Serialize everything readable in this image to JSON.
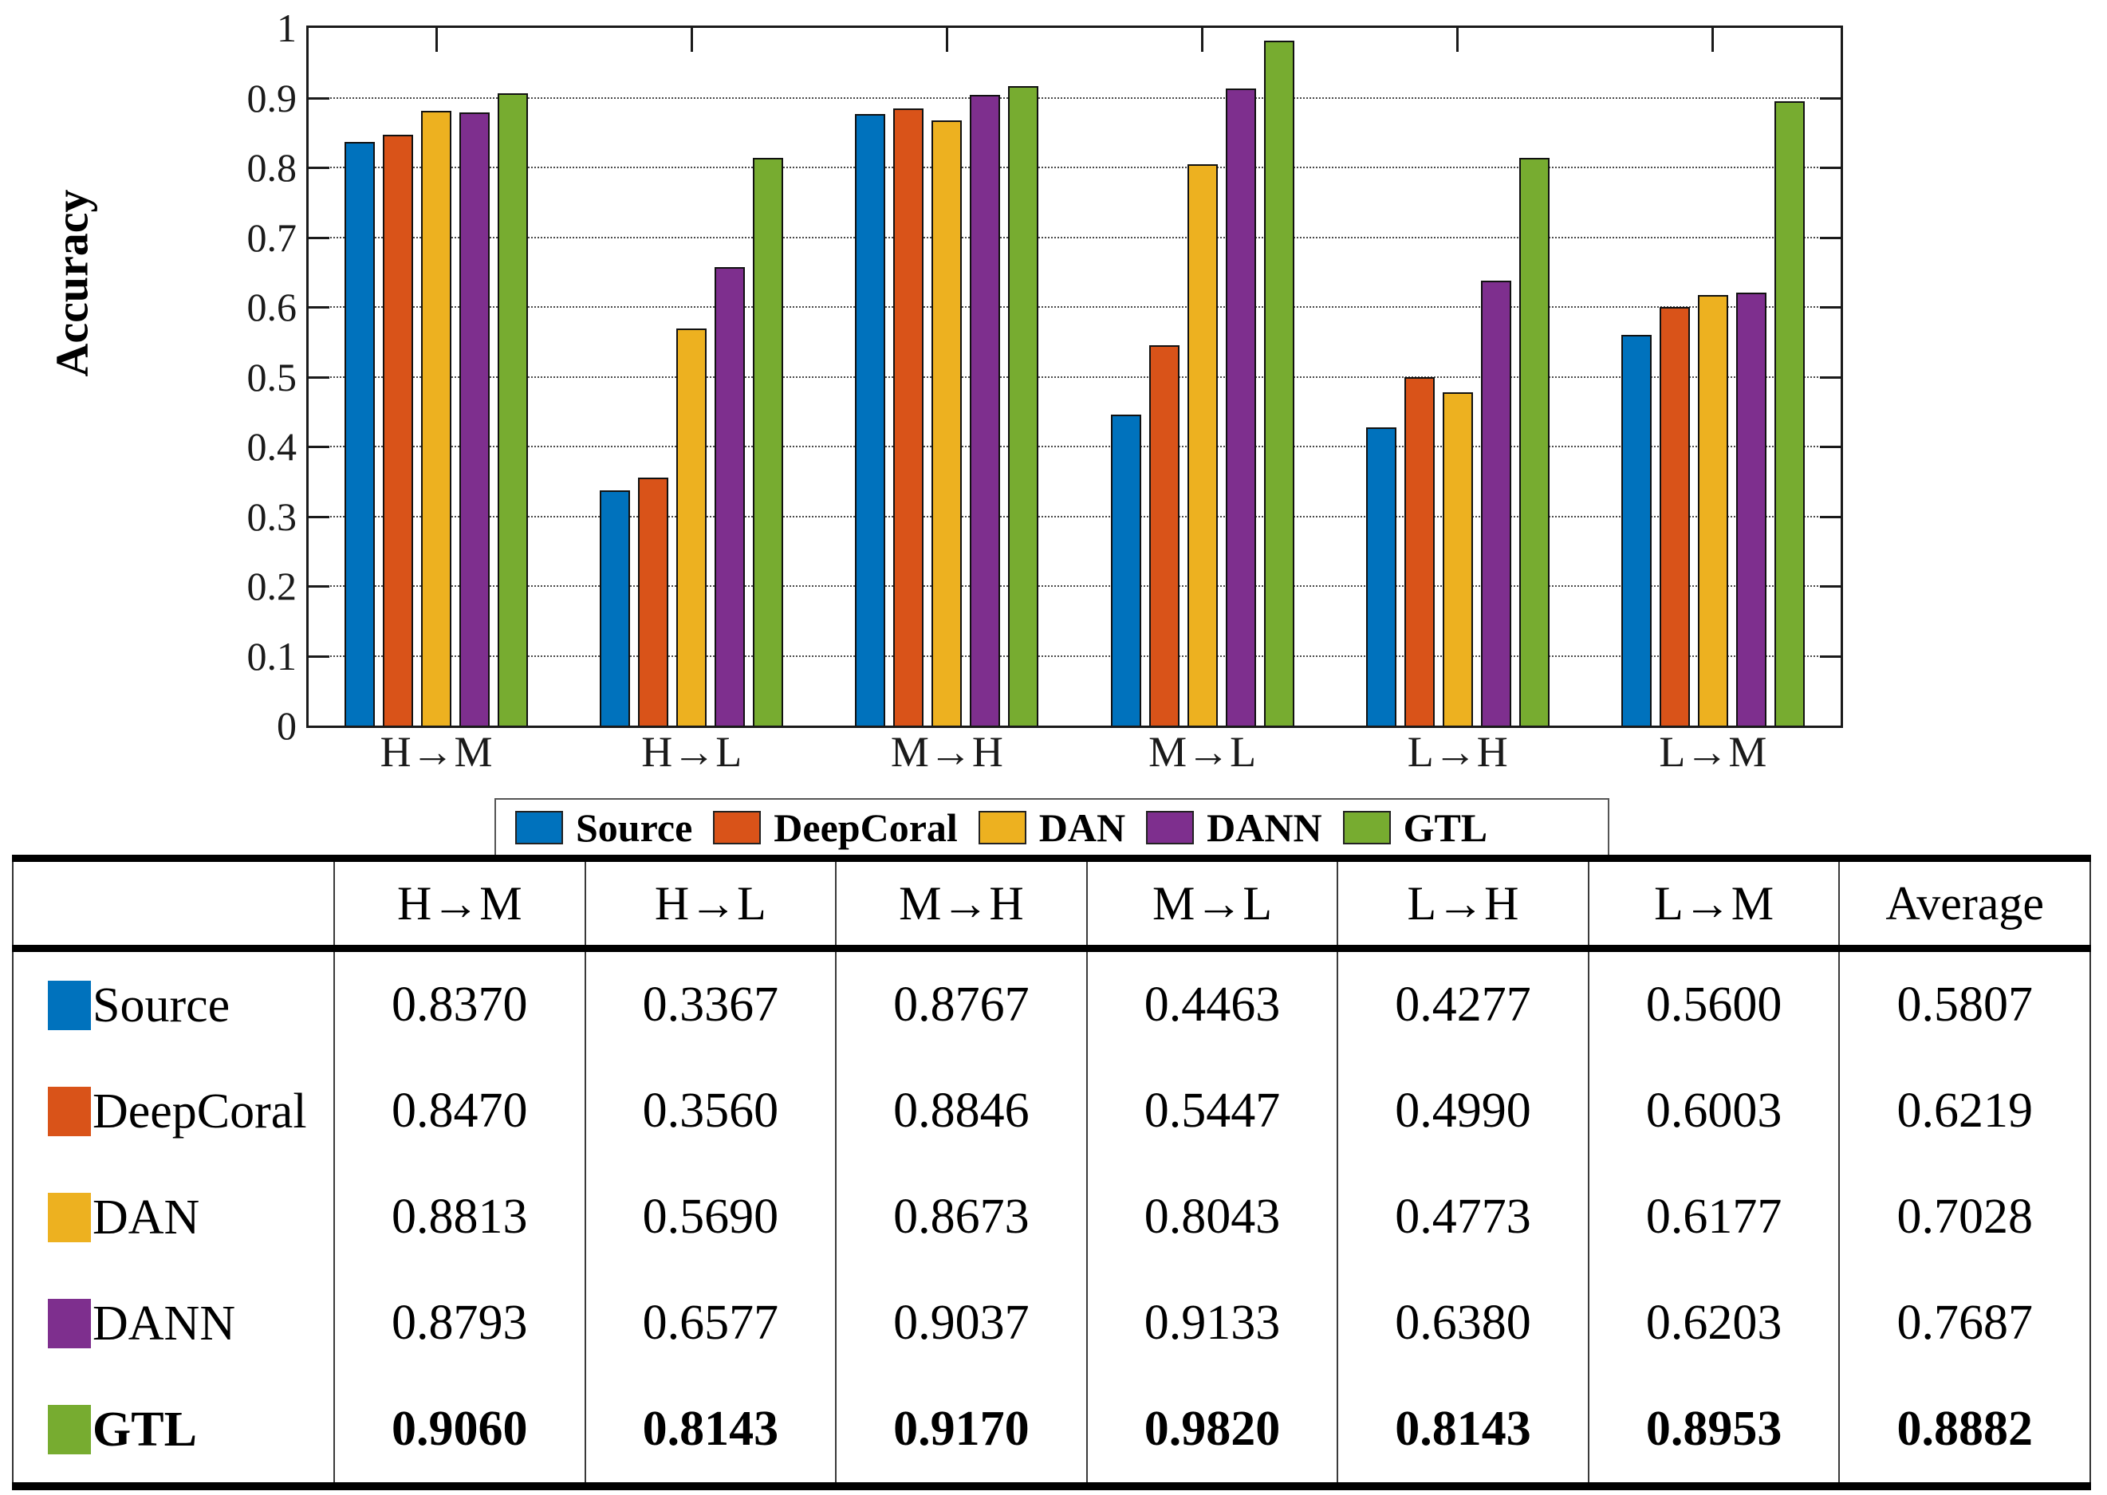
{
  "chart_data": {
    "type": "bar",
    "title": "",
    "xlabel": "",
    "ylabel": "Accuracy",
    "ylim": [
      0,
      1
    ],
    "yticks": [
      "0",
      "0.1",
      "0.2",
      "0.3",
      "0.4",
      "0.5",
      "0.6",
      "0.7",
      "0.8",
      "0.9",
      "1"
    ],
    "grid": true,
    "legend_position": "below",
    "categories": [
      "H→M",
      "H→L",
      "M→H",
      "M→L",
      "L→H",
      "L→M"
    ],
    "series": [
      {
        "name": "Source",
        "color": "#0072BD",
        "values": [
          0.837,
          0.3367,
          0.8767,
          0.4463,
          0.4277,
          0.56
        ]
      },
      {
        "name": "DeepCoral",
        "color": "#D95319",
        "values": [
          0.847,
          0.356,
          0.8846,
          0.5447,
          0.499,
          0.6003
        ]
      },
      {
        "name": "DAN",
        "color": "#EDB120",
        "values": [
          0.8813,
          0.569,
          0.8673,
          0.8043,
          0.4773,
          0.6177
        ]
      },
      {
        "name": "DANN",
        "color": "#7E2F8E",
        "values": [
          0.8793,
          0.6577,
          0.9037,
          0.9133,
          0.638,
          0.6203
        ]
      },
      {
        "name": "GTL",
        "color": "#77AC30",
        "values": [
          0.906,
          0.8143,
          0.917,
          0.982,
          0.8143,
          0.8953
        ]
      }
    ]
  },
  "legend": {
    "items": [
      {
        "label": "Source",
        "color": "#0072BD"
      },
      {
        "label": "DeepCoral",
        "color": "#D95319"
      },
      {
        "label": "DAN",
        "color": "#EDB120"
      },
      {
        "label": "DANN",
        "color": "#7E2F8E"
      },
      {
        "label": "GTL",
        "color": "#77AC30"
      }
    ]
  },
  "table": {
    "columns": [
      "",
      "H→M",
      "H→L",
      "M→H",
      "M→L",
      "L→H",
      "L→M",
      "Average"
    ],
    "rows": [
      {
        "label": "Source",
        "color": "#0072BD",
        "bold": false,
        "values": [
          "0.8370",
          "0.3367",
          "0.8767",
          "0.4463",
          "0.4277",
          "0.5600",
          "0.5807"
        ]
      },
      {
        "label": "DeepCoral",
        "color": "#D95319",
        "bold": false,
        "values": [
          "0.8470",
          "0.3560",
          "0.8846",
          "0.5447",
          "0.4990",
          "0.6003",
          "0.6219"
        ]
      },
      {
        "label": "DAN",
        "color": "#EDB120",
        "bold": false,
        "values": [
          "0.8813",
          "0.5690",
          "0.8673",
          "0.8043",
          "0.4773",
          "0.6177",
          "0.7028"
        ]
      },
      {
        "label": "DANN",
        "color": "#7E2F8E",
        "bold": false,
        "values": [
          "0.8793",
          "0.6577",
          "0.9037",
          "0.9133",
          "0.6380",
          "0.6203",
          "0.7687"
        ]
      },
      {
        "label": "GTL",
        "color": "#77AC30",
        "bold": true,
        "values": [
          "0.9060",
          "0.8143",
          "0.9170",
          "0.9820",
          "0.8143",
          "0.8953",
          "0.8882"
        ]
      }
    ]
  }
}
